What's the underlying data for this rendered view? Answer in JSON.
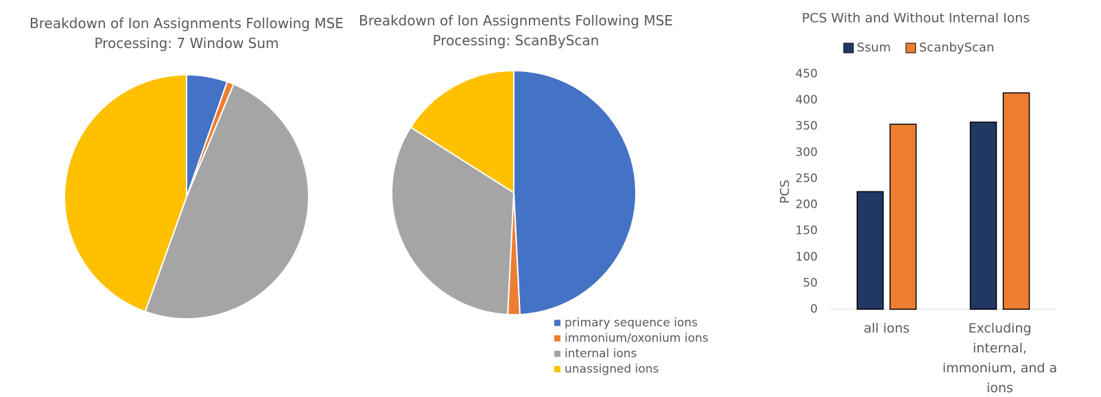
{
  "chart_data": [
    {
      "type": "pie",
      "title": "Breakdown of Ion Assignments Following MSE Processing: 7 Window Sum",
      "values": [
        5.4,
        0.9,
        49.2,
        44.5
      ],
      "colors": [
        "#4472c4",
        "#ed7d31",
        "#a5a5a5",
        "#ffc000"
      ]
    },
    {
      "type": "pie",
      "title": "Breakdown of Ion Assignments Following MSE Processing: ScanByScan",
      "categories": [
        "primary sequence ions",
        "immonium/oxonium ions",
        "internal ions",
        "unassigned ions"
      ],
      "values": [
        49.2,
        1.6,
        33.2,
        16.0
      ],
      "colors": [
        "#4472c4",
        "#ed7d31",
        "#a5a5a5",
        "#ffc000"
      ],
      "legend": "bottom-right"
    },
    {
      "type": "bar",
      "title": "PCS With and Without Internal Ions",
      "y_label": "PCS",
      "categories": [
        "all ions",
        "Excluding internal, immonium, and a ions"
      ],
      "series": [
        {
          "name": "Ssum",
          "color": "#203864",
          "values": [
            225,
            358
          ]
        },
        {
          "name": "ScanbyScan",
          "color": "#ed7d31",
          "values": [
            354,
            414
          ]
        }
      ],
      "ylim": [
        0,
        450
      ],
      "yticks": [
        0,
        50,
        100,
        150,
        200,
        250,
        300,
        350,
        400,
        450
      ],
      "legend": "top"
    }
  ]
}
